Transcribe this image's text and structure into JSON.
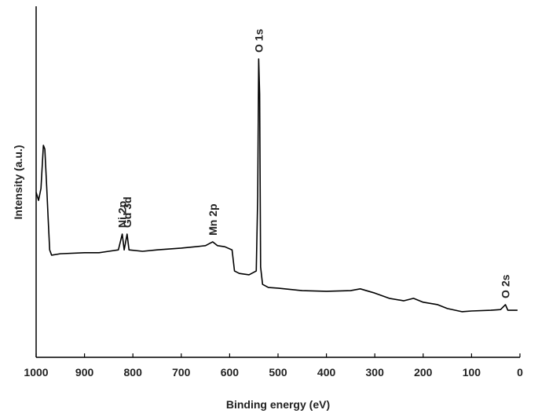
{
  "chart_data": {
    "type": "line",
    "x_label": "Binding energy (eV)",
    "y_label": "Intensity (a.u.)",
    "xlim": [
      1000,
      0
    ],
    "ylim": [
      0,
      100
    ],
    "xticks": [
      1000,
      900,
      800,
      700,
      600,
      500,
      400,
      300,
      200,
      100,
      0
    ],
    "color": "#000000",
    "x": [
      1000,
      995,
      990,
      985,
      982,
      978,
      975,
      972,
      968,
      950,
      900,
      870,
      850,
      830,
      822,
      818,
      812,
      808,
      780,
      750,
      700,
      650,
      635,
      625,
      610,
      595,
      590,
      580,
      560,
      545,
      542,
      540,
      538,
      536,
      532,
      520,
      500,
      450,
      400,
      350,
      330,
      300,
      270,
      240,
      220,
      200,
      170,
      150,
      120,
      100,
      60,
      40,
      30,
      25,
      5
    ],
    "values": [
      47.0,
      44.7,
      48.1,
      60.4,
      59.3,
      48.1,
      39.1,
      30.6,
      29.1,
      29.5,
      29.8,
      29.8,
      30.2,
      30.6,
      35.1,
      30.6,
      35.1,
      30.6,
      30.2,
      30.6,
      31.1,
      31.8,
      32.9,
      31.8,
      31.5,
      30.6,
      24.6,
      23.9,
      23.5,
      24.6,
      45.9,
      85.0,
      74.9,
      25.7,
      20.8,
      19.9,
      19.7,
      19.0,
      18.8,
      19.0,
      19.5,
      18.3,
      16.8,
      16.1,
      16.8,
      15.7,
      15.0,
      13.9,
      13.0,
      13.2,
      13.4,
      13.6,
      15.0,
      13.4,
      13.4
    ],
    "annotations": [
      {
        "text": "Ni 2p",
        "x": 822
      },
      {
        "text": "Gd 3d",
        "x": 812
      },
      {
        "text": "Mn 2p",
        "x": 635
      },
      {
        "text": "O 1s",
        "x": 540
      },
      {
        "text": "O 2s",
        "x": 30
      }
    ]
  }
}
